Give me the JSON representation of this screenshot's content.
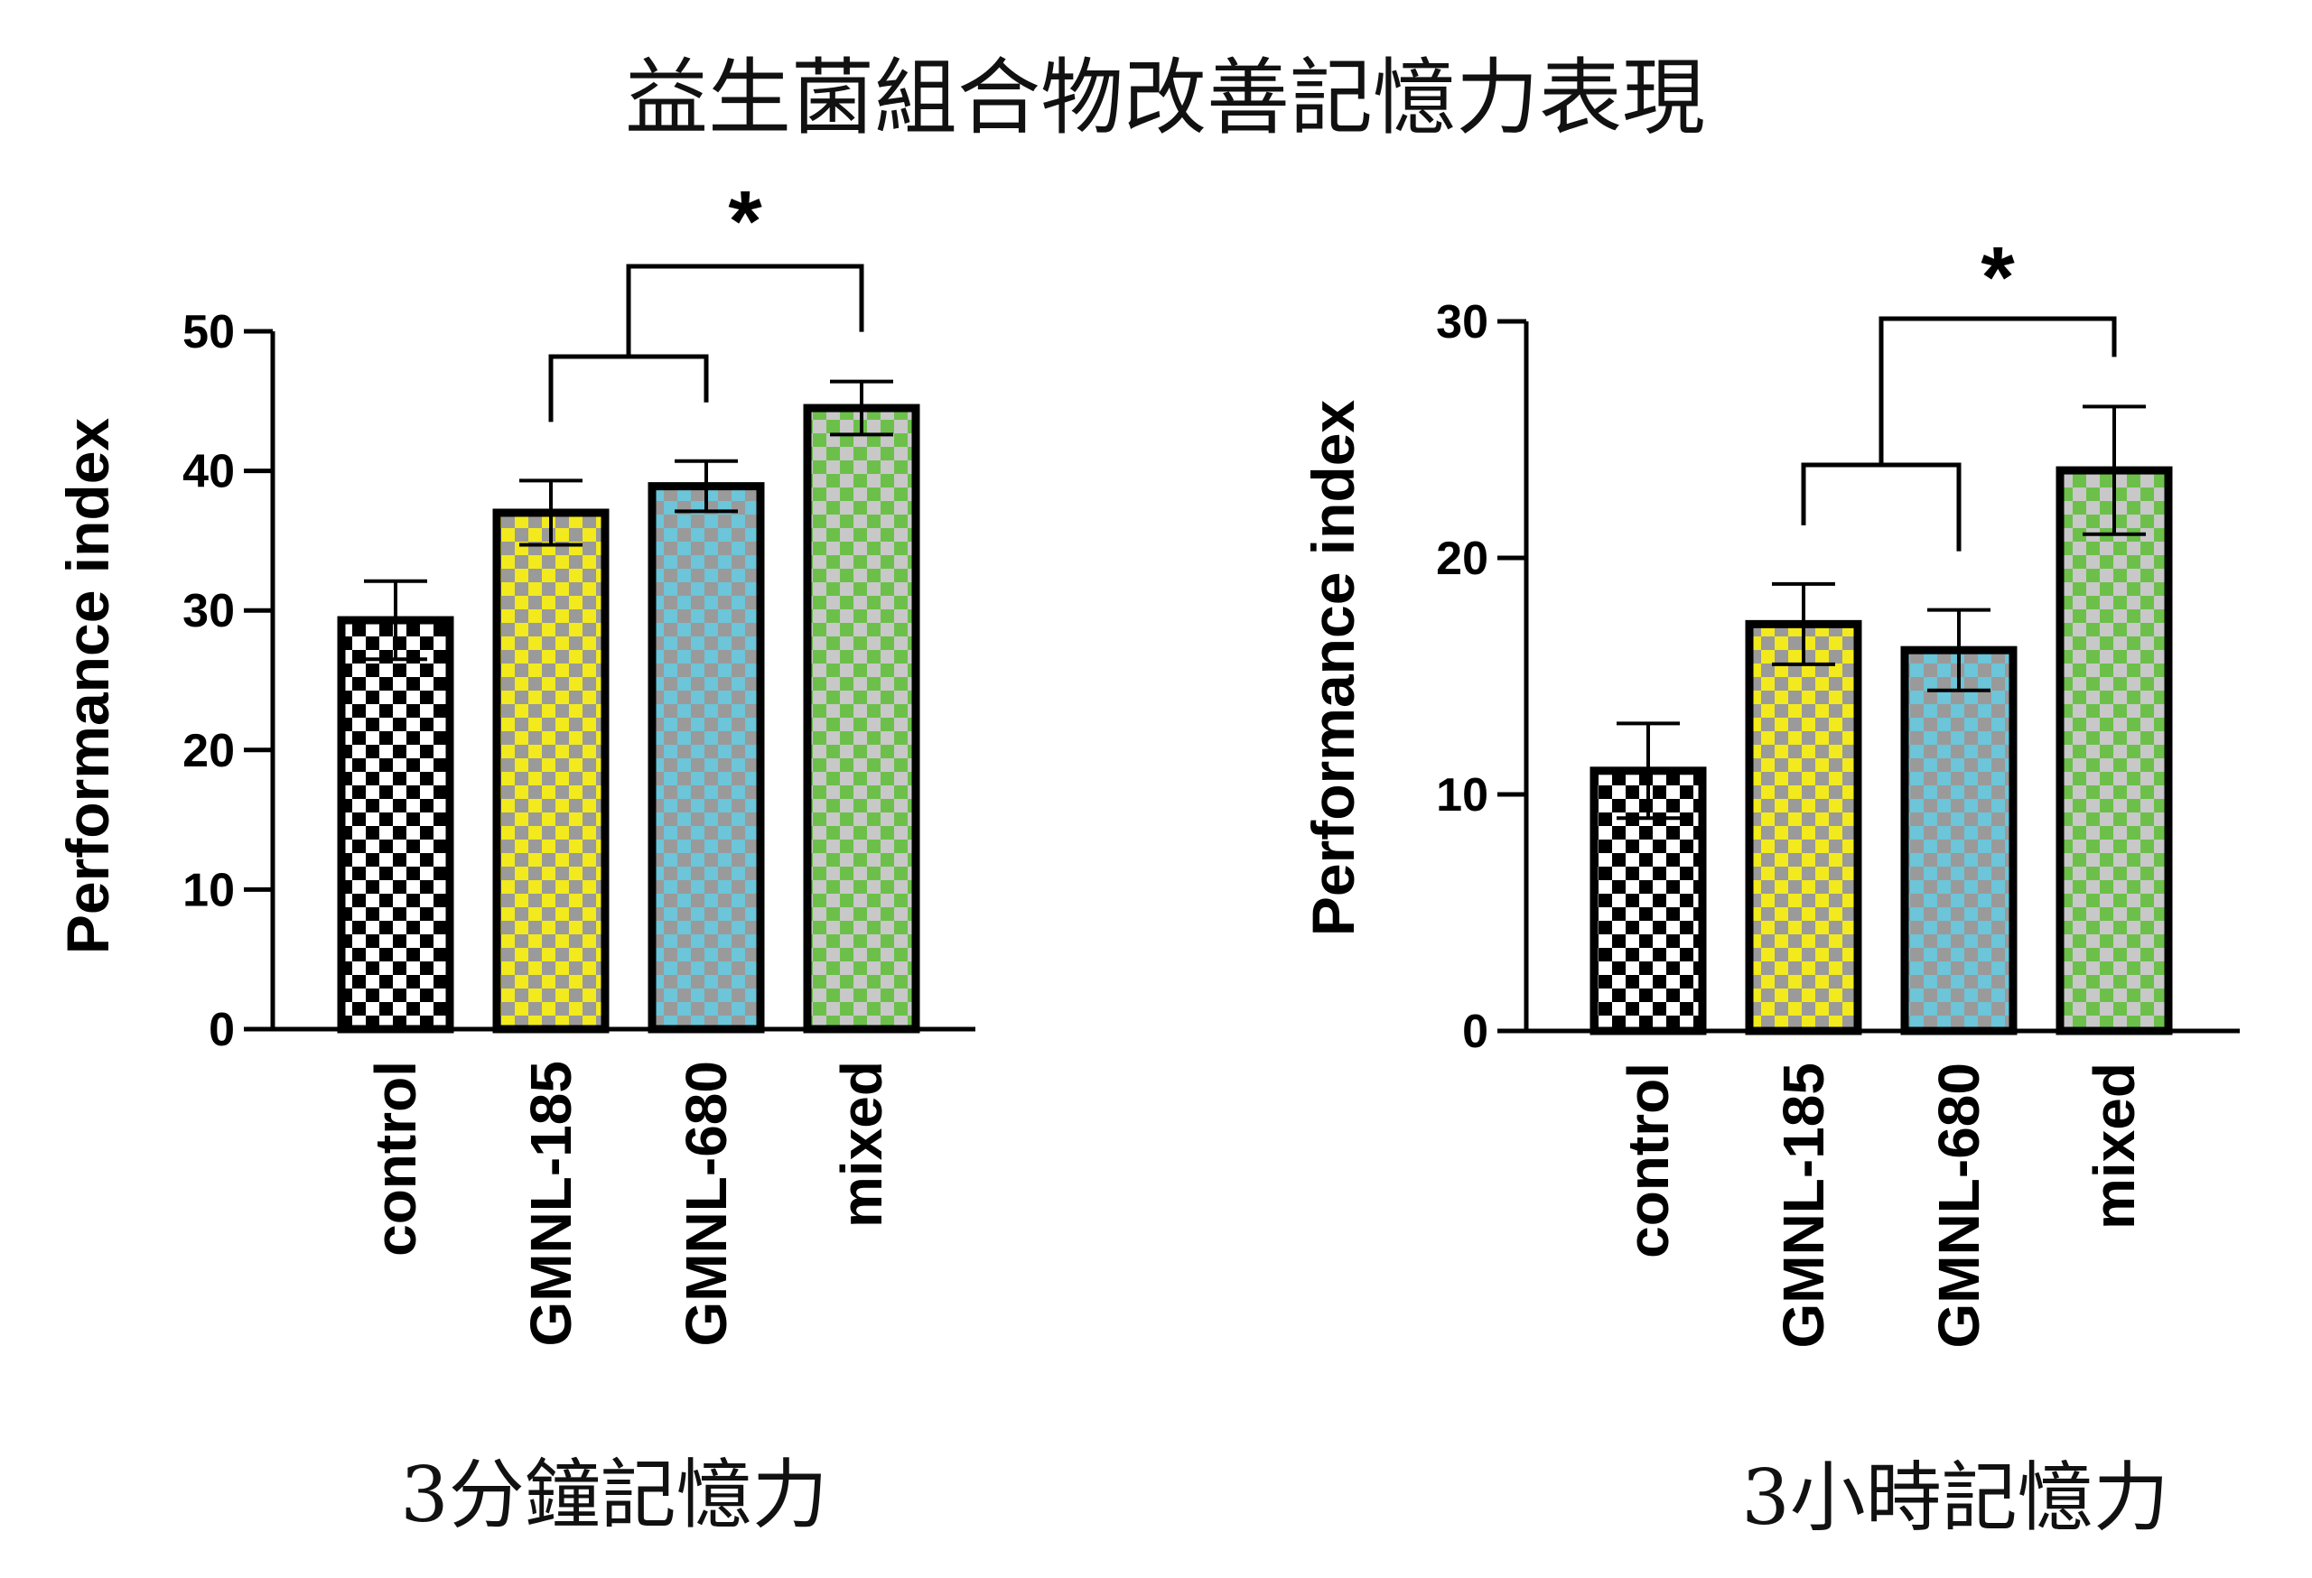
{
  "figure_title": "益生菌組合物改善記憶力表現",
  "colors": {
    "control": [
      "#000000",
      "#ffffff"
    ],
    "GMNL-185": [
      "#f2ea1c",
      "#9a9a9a"
    ],
    "GMNL-680": [
      "#6cc5d8",
      "#9a9a9a"
    ],
    "mixed": [
      "#6cc04a",
      "#c8c8c8"
    ]
  },
  "chart_data": [
    {
      "type": "bar",
      "title": "3分鐘記憶力",
      "ylabel": "Performance index",
      "categories": [
        "control",
        "GMNL-185",
        "GMNL-680",
        "mixed"
      ],
      "values": [
        29.3,
        37.0,
        38.9,
        44.5
      ],
      "errors": [
        2.8,
        2.3,
        1.8,
        1.9
      ],
      "ylim": [
        0,
        50
      ],
      "yticks": [
        "0",
        "10",
        "20",
        "30",
        "40",
        "50"
      ],
      "significance": {
        "label": "*",
        "group": [
          "GMNL-185",
          "GMNL-680"
        ],
        "vs": "mixed"
      }
    },
    {
      "type": "bar",
      "title": "3小時記憶力",
      "ylabel": "Performance index",
      "categories": [
        "control",
        "GMNL-185",
        "GMNL-680",
        "mixed"
      ],
      "values": [
        11.0,
        17.2,
        16.1,
        23.7
      ],
      "errors": [
        2.0,
        1.7,
        1.7,
        2.7
      ],
      "ylim": [
        0,
        30
      ],
      "yticks": [
        "0",
        "10",
        "20",
        "30"
      ],
      "significance": {
        "label": "*",
        "group": [
          "GMNL-185",
          "GMNL-680"
        ],
        "vs": "mixed"
      }
    }
  ]
}
